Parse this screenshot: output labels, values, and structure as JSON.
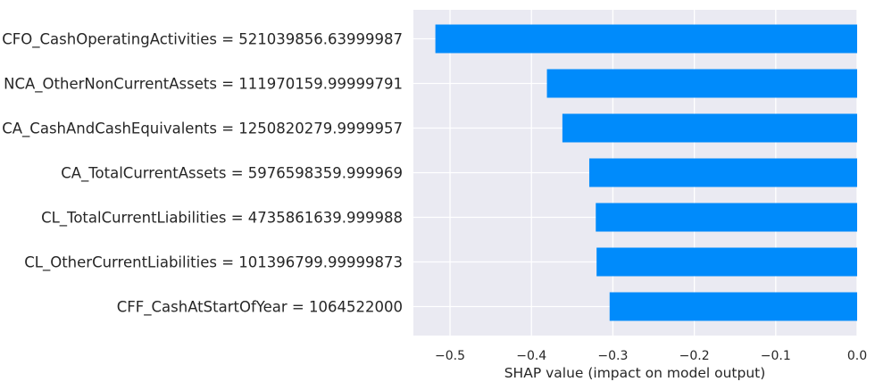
{
  "chart_data": {
    "type": "bar",
    "orientation": "horizontal",
    "title": "",
    "xlabel": "SHAP value (impact on model output)",
    "ylabel": "",
    "xlim": [
      -0.545,
      0.0
    ],
    "xticks": [
      -0.5,
      -0.4,
      -0.3,
      -0.2,
      -0.1,
      0.0
    ],
    "xtick_labels": [
      "−0.5",
      "−0.4",
      "−0.3",
      "−0.2",
      "−0.1",
      "0.0"
    ],
    "grid": true,
    "bar_color": "#008bfb",
    "background_color": "#eaeaf2",
    "categories": [
      "CFO_CashOperatingActivities = 521039856.63999987",
      "NCA_OtherNonCurrentAssets = 111970159.99999791",
      "CA_CashAndCashEquivalents = 1250820279.9999957",
      "CA_TotalCurrentAssets = 5976598359.999969",
      "CL_TotalCurrentLiabilities = 4735861639.999988",
      "CL_OtherCurrentLiabilities = 101396799.99999873",
      "CFF_CashAtStartOfYear = 1064522000"
    ],
    "values": [
      -0.518,
      -0.381,
      -0.362,
      -0.329,
      -0.321,
      -0.32,
      -0.304
    ]
  }
}
